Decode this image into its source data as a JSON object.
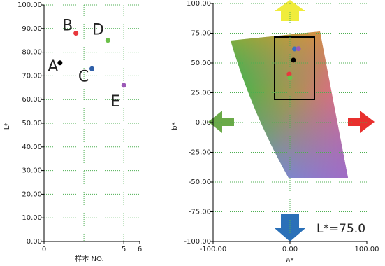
{
  "chart_data": [
    {
      "type": "scatter",
      "x_label": "样本 NO.",
      "y_label": "L*",
      "x": [
        1,
        2,
        3,
        4,
        5
      ],
      "values": [
        75.5,
        88,
        73,
        85,
        66
      ],
      "colors": [
        "#000000",
        "#e8383d",
        "#2e5fa8",
        "#6cc04a",
        "#9b59b6"
      ],
      "point_labels": [
        "A",
        "B",
        "C",
        "D",
        "E"
      ],
      "label_colors": [
        "#000000",
        "#e8484d",
        "#2e6fb8",
        "#6cc04a",
        "#a05cc0"
      ],
      "xlim": [
        0,
        6
      ],
      "xticks": [
        0,
        5,
        6
      ],
      "xgrid": [
        2.5,
        5
      ],
      "ylim": [
        0,
        100
      ],
      "yticks": [
        {
          "value": 0,
          "label": "0.00"
        },
        {
          "value": 10,
          "label": "10.00"
        },
        {
          "value": 20,
          "label": "20.00"
        },
        {
          "value": 30,
          "label": "30.00"
        },
        {
          "value": 40,
          "label": "40.00"
        },
        {
          "value": 50,
          "label": "50.00"
        },
        {
          "value": 60,
          "label": "60.00"
        },
        {
          "value": 70,
          "label": "70.00"
        },
        {
          "value": 80,
          "label": "80.00"
        },
        {
          "value": 90,
          "label": "90.00"
        },
        {
          "value": 100,
          "label": "100.00"
        }
      ],
      "grid": true
    },
    {
      "type": "scatter",
      "x_label": "a*",
      "y_label": "b*",
      "x": [
        4.5,
        -1,
        0,
        6,
        11
      ],
      "values": [
        52.4,
        40.6,
        37.6,
        61.8,
        62
      ],
      "colors": [
        "#000000",
        "#e8383d",
        "#6cc04a",
        "#3a6fc0",
        "#9b59b6"
      ],
      "annotation": "L*=75.0",
      "xlim": [
        -100,
        100
      ],
      "xticks": [
        {
          "value": -100,
          "label": "-100.00"
        },
        {
          "value": 0,
          "label": "0.00"
        },
        {
          "value": 100,
          "label": "100.00"
        }
      ],
      "xgrid": [
        0
      ],
      "ylim": [
        -100,
        100
      ],
      "yticks": [
        {
          "value": -100,
          "label": "-100.00"
        },
        {
          "value": -75,
          "label": "-75.00"
        },
        {
          "value": -50,
          "label": "-50.00"
        },
        {
          "value": -25,
          "label": "-25.00"
        },
        {
          "value": 0,
          "label": "0.00"
        },
        {
          "value": 25,
          "label": "25.00"
        },
        {
          "value": 50,
          "label": "50.00"
        },
        {
          "value": 75,
          "label": "75.00"
        },
        {
          "value": 100,
          "label": "100.00"
        }
      ],
      "grid": true
    }
  ]
}
